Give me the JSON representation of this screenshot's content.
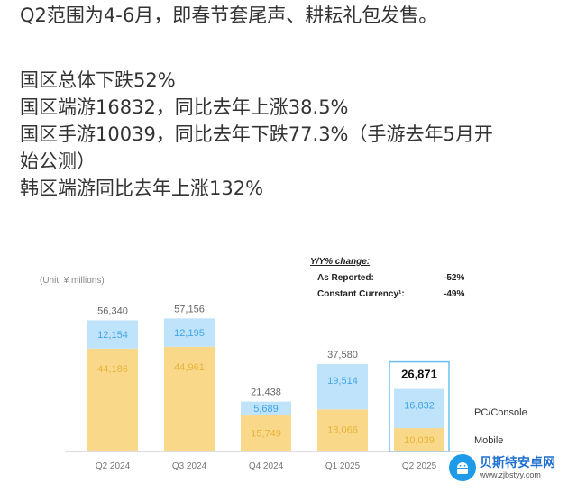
{
  "article": {
    "lines": [
      "Q2范围为4-6月，即春节套尾声、耕耘礼包发售。",
      "国区总体下跌52%",
      "国区端游16832，同比去年上涨38.5%",
      "国区手游10039，同比去年下跌77.3%（手游去年5月开",
      "始公测）",
      "韩区端游同比去年上涨132%"
    ]
  },
  "chart_data": {
    "type": "bar",
    "stacked": true,
    "unit_label": "(Unit: ¥ millions)",
    "categories": [
      "Q2 2024",
      "Q3 2024",
      "Q4 2024",
      "Q1 2025",
      "Q2 2025"
    ],
    "series": [
      {
        "name": "Mobile",
        "values": [
          44186,
          44961,
          15749,
          18066,
          10039
        ],
        "color": "#f9d889",
        "label_color": "#e7b43c"
      },
      {
        "name": "PC/Console",
        "values": [
          12154,
          12195,
          5689,
          19514,
          16832
        ],
        "color": "#bfe3fa",
        "label_color": "#41a6e6"
      }
    ],
    "totals": [
      "56,340",
      "57,156",
      "21,438",
      "37,580",
      "26,871"
    ],
    "value_labels": {
      "Mobile": [
        "44,186",
        "44,961",
        "15,749",
        "18,066",
        "10,039"
      ],
      "PC/Console": [
        "12,154",
        "12,195",
        "5,689",
        "19,514",
        "16,832"
      ]
    },
    "highlight_category": "Q2 2025",
    "ylim": [
      0,
      60000
    ],
    "change_box": {
      "title": "Y/Y% change:",
      "rows": [
        {
          "label": "As Reported:",
          "value": "-52%"
        },
        {
          "label": "Constant Currency¹:",
          "value": "-49%"
        }
      ]
    }
  },
  "watermark": {
    "name": "贝斯特安卓网",
    "url": "www.zjbstyy.com"
  },
  "colors": {
    "text": "#333333",
    "mobile": "#f9d889",
    "pc_console": "#bfe3fa",
    "highlight_border": "#69c0f2",
    "watermark_blue": "#1e9be8"
  }
}
